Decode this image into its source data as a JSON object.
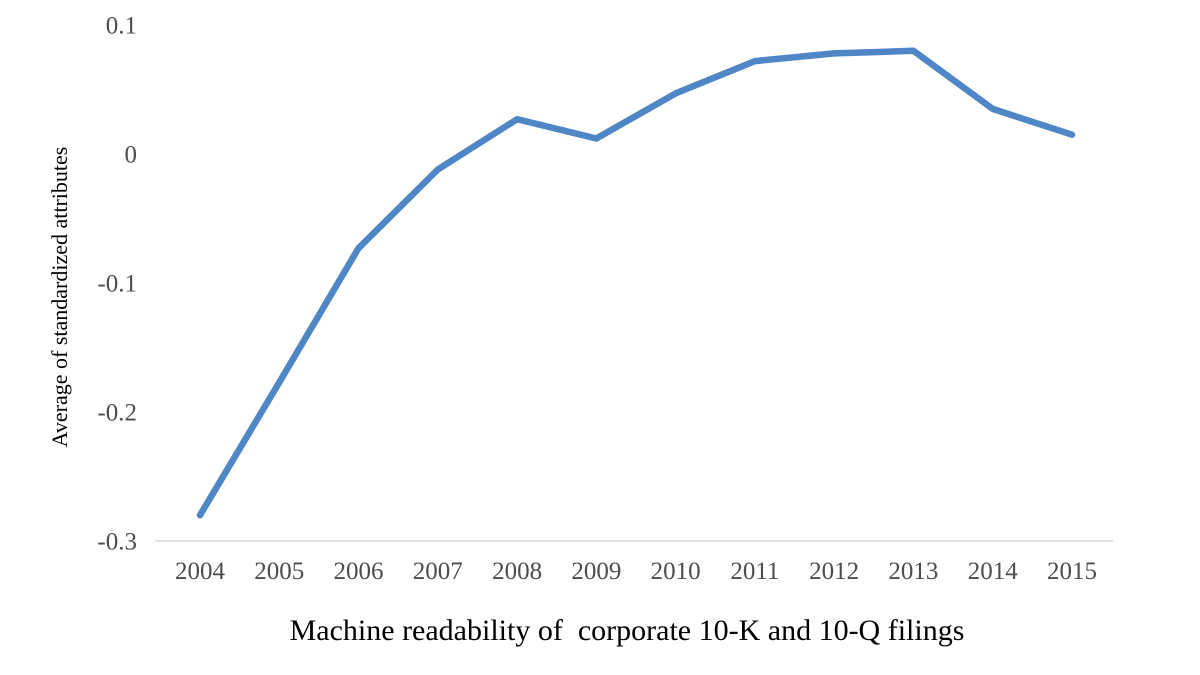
{
  "chart_data": {
    "type": "line",
    "categories": [
      "2004",
      "2005",
      "2006",
      "2007",
      "2008",
      "2009",
      "2010",
      "2011",
      "2012",
      "2013",
      "2014",
      "2015"
    ],
    "values": [
      -0.28,
      -0.177,
      -0.073,
      -0.012,
      0.027,
      0.012,
      0.047,
      0.072,
      0.078,
      0.08,
      0.035,
      0.015
    ],
    "series_name": "Machine readability",
    "title": "",
    "xlabel": "Machine readability of  corporate 10-K and 10-Q filings",
    "ylabel": "Average of standardized attributes",
    "ylim": [
      -0.3,
      0.1
    ],
    "ytick_labels": [
      "0.1",
      "0",
      "-0.1",
      "-0.2",
      "-0.3"
    ],
    "grid": false,
    "legend_position": "none",
    "line_color": "#4F86C6",
    "axis_line_color": "#D9D9D9",
    "tick_label_color": "#4d4d4d"
  }
}
